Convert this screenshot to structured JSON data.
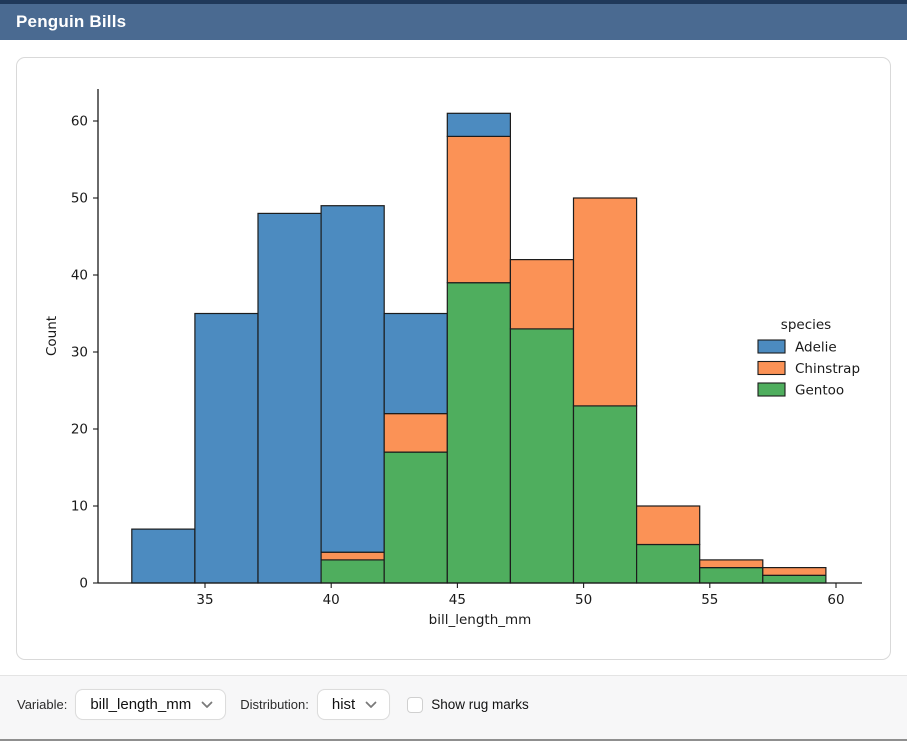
{
  "header": {
    "title": "Penguin Bills"
  },
  "controls": {
    "variable_label": "Variable:",
    "variable_value": "bill_length_mm",
    "distribution_label": "Distribution:",
    "distribution_value": "hist",
    "rug_label": "Show rug marks",
    "rug_checked": false
  },
  "colors": {
    "header_bg": "#4a6a91",
    "header_top_stripe": "#20395a",
    "adelie_blue": "#4c8bc0",
    "chinstrap_orange": "#fb9256",
    "gentoo_green": "#4fae5e",
    "bar_edge": "#1c1c1c"
  },
  "chart_data": {
    "type": "bar",
    "subtype": "stacked-histogram",
    "xlabel": "bill_length_mm",
    "ylabel": "Count",
    "grid": false,
    "bin_edges": [
      32.1,
      34.6,
      37.1,
      39.6,
      42.1,
      44.6,
      47.1,
      49.6,
      52.1,
      54.6,
      57.1,
      59.6
    ],
    "x_ticks": [
      35,
      40,
      45,
      50,
      55,
      60
    ],
    "y_ticks": [
      0,
      10,
      20,
      30,
      40,
      50,
      60
    ],
    "xlim": [
      31.4,
      61.0
    ],
    "ylim": [
      0,
      64
    ],
    "series": [
      {
        "name": "Adelie",
        "color": "#4c8bc0",
        "values": [
          7,
          35,
          48,
          45,
          13,
          3,
          0,
          0,
          0,
          0,
          0
        ]
      },
      {
        "name": "Chinstrap",
        "color": "#fb9256",
        "values": [
          0,
          0,
          0,
          1,
          5,
          19,
          9,
          27,
          5,
          1,
          1
        ]
      },
      {
        "name": "Gentoo",
        "color": "#4fae5e",
        "values": [
          0,
          0,
          0,
          3,
          17,
          39,
          33,
          23,
          5,
          2,
          1
        ]
      }
    ],
    "stack_order_bottom_to_top": [
      "Gentoo",
      "Chinstrap",
      "Adelie"
    ],
    "bin_totals": [
      7,
      35,
      48,
      49,
      35,
      61,
      42,
      50,
      10,
      3,
      2
    ],
    "legend": {
      "title": "species",
      "entries": [
        "Adelie",
        "Chinstrap",
        "Gentoo"
      ],
      "position": "center-right",
      "frame": false
    }
  }
}
